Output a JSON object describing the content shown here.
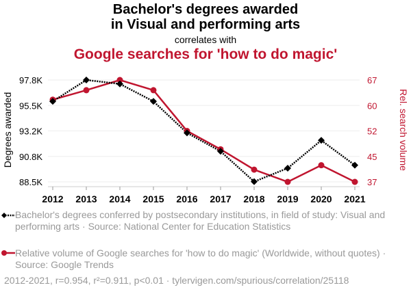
{
  "chart_data": {
    "type": "line",
    "title": "Bachelor's degrees awarded\nin Visual and performing arts",
    "correlates_label": "correlates with",
    "subtitle": "Google searches for 'how to do magic'",
    "x": [
      2012,
      2013,
      2014,
      2015,
      2016,
      2017,
      2018,
      2019,
      2020,
      2021
    ],
    "x_ticks": [
      "2012",
      "2013",
      "2014",
      "2015",
      "2016",
      "2017",
      "2018",
      "2019",
      "2020",
      "2021"
    ],
    "ylabel": "Degrees awarded",
    "y2label": "Rel. search volume",
    "y_ticks": [
      "97.8K",
      "95.5K",
      "93.2K",
      "90.8K",
      "88.5K"
    ],
    "y2_ticks": [
      "67",
      "60",
      "52",
      "45",
      "37"
    ],
    "ylim": [
      88.5,
      97.8
    ],
    "y2lim": [
      37,
      67
    ],
    "grid": true,
    "series": [
      {
        "name": "Bachelor's degrees conferred by postsecondary institutions, in field of study: Visual and performing arts · Source: National Center for Education Statistics",
        "axis": "left",
        "unit": "thousands",
        "color": "#000000",
        "style": "dotted",
        "marker": "diamond",
        "values": [
          95.85,
          97.8,
          97.44,
          95.85,
          92.97,
          91.29,
          88.52,
          89.75,
          92.29,
          90.02
        ]
      },
      {
        "name": "Relative volume of Google searches for 'how to do magic' (Worldwide, without quotes) · Source: Google Trends",
        "axis": "right",
        "color": "#c0152f",
        "style": "solid",
        "marker": "circle",
        "values": [
          61.2,
          64,
          67,
          64,
          52,
          46.6,
          40.6,
          37,
          41.9,
          37
        ]
      }
    ],
    "legend_placement": "bottom",
    "footer": "2012-2021, r=0.954, r²=0.911, p<0.01 · tylervigen.com/spurious/correlation/25118"
  }
}
